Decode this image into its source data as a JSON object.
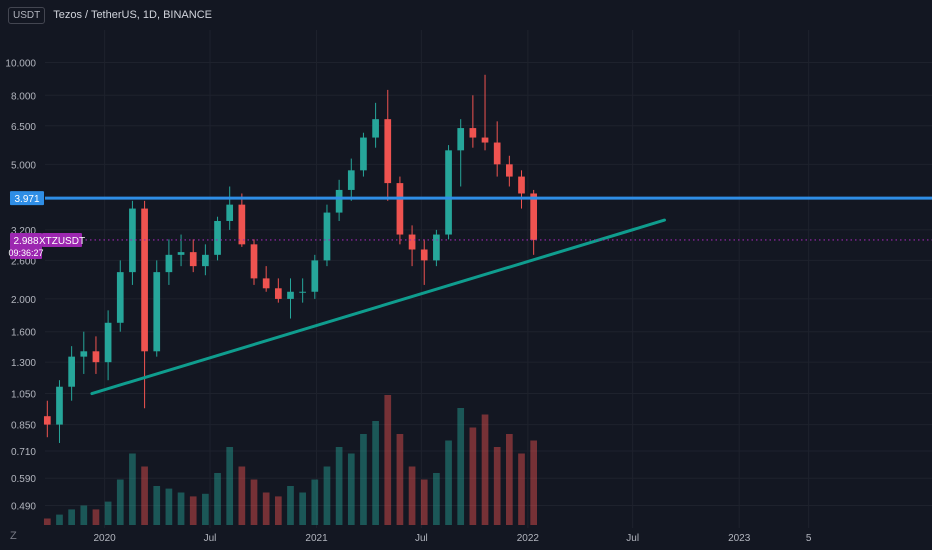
{
  "header": {
    "currency_button": "USDT",
    "title": "Tezos / TetherUS, 1D, BINANCE"
  },
  "bottom_bar": {
    "zoom_button": "Z"
  },
  "colors": {
    "background": "#131722",
    "grid": "#1e222d",
    "axis_text": "#b2b5be",
    "up_candle": "#26a69a",
    "down_candle": "#ef5350",
    "resistance_line": "#2f8ee6",
    "trendline": "#0f9d8e",
    "price_line": "#9c27b0"
  },
  "chart_data": {
    "type": "candlestick",
    "title": "Tezos / TetherUS, 1D, BINANCE",
    "symbol": "XTZUSDT",
    "y_scale": "log",
    "ylim": [
      0.45,
      11.5
    ],
    "grid": true,
    "y_ticks": [
      "10.000",
      "8.000",
      "6.500",
      "5.000",
      "3.200",
      "2.600",
      "2.000",
      "1.600",
      "1.300",
      "1.050",
      "0.850",
      "0.710",
      "0.590",
      "0.490"
    ],
    "x_ticks": [
      "2020",
      "Jul",
      "2021",
      "Jul",
      "2022",
      "Jul",
      "2023",
      "5"
    ],
    "x_tick_dates": [
      "2020-01-01",
      "2020-07-01",
      "2021-01-01",
      "2021-07-01",
      "2022-01-01",
      "2022-07-01",
      "2023-01-01",
      "2023-05-01"
    ],
    "xlim": [
      "2019-09-20",
      "2023-11-30"
    ],
    "series": [
      {
        "type": "candlestick",
        "timeframe": "1D",
        "x": [
          "2019-09-24",
          "2019-10-15",
          "2019-11-05",
          "2019-11-26",
          "2019-12-17",
          "2020-01-07",
          "2020-01-28",
          "2020-02-18",
          "2020-03-10",
          "2020-03-31",
          "2020-04-21",
          "2020-05-12",
          "2020-06-02",
          "2020-06-23",
          "2020-07-14",
          "2020-08-04",
          "2020-08-25",
          "2020-09-15",
          "2020-10-06",
          "2020-10-27",
          "2020-11-17",
          "2020-12-08",
          "2020-12-29",
          "2021-01-19",
          "2021-02-09",
          "2021-03-02",
          "2021-03-23",
          "2021-04-13",
          "2021-05-04",
          "2021-05-25",
          "2021-06-15",
          "2021-07-06",
          "2021-07-27",
          "2021-08-17",
          "2021-09-07",
          "2021-09-28",
          "2021-10-19",
          "2021-11-09",
          "2021-11-30",
          "2021-12-21",
          "2022-01-11"
        ],
        "open": [
          0.9,
          0.85,
          1.1,
          1.35,
          1.4,
          1.3,
          1.7,
          2.4,
          3.7,
          1.4,
          2.4,
          2.7,
          2.75,
          2.5,
          2.7,
          3.4,
          3.8,
          2.9,
          2.3,
          2.15,
          2.0,
          2.1,
          2.1,
          2.6,
          3.6,
          4.2,
          4.8,
          6.0,
          6.8,
          4.4,
          3.1,
          2.8,
          2.6,
          3.1,
          5.5,
          6.4,
          6.0,
          5.8,
          5.0,
          4.6,
          4.1
        ],
        "high": [
          1.0,
          1.15,
          1.45,
          1.6,
          1.55,
          1.85,
          2.6,
          3.9,
          3.9,
          2.6,
          3.0,
          3.1,
          3.0,
          2.9,
          3.5,
          4.3,
          4.1,
          3.0,
          2.5,
          2.3,
          2.3,
          2.3,
          2.7,
          3.8,
          4.5,
          5.2,
          6.2,
          7.6,
          8.3,
          4.6,
          3.3,
          3.0,
          3.2,
          5.7,
          6.8,
          8.0,
          9.2,
          6.7,
          5.3,
          4.8,
          4.2
        ],
        "low": [
          0.78,
          0.75,
          1.0,
          1.2,
          1.2,
          1.15,
          1.6,
          2.2,
          0.95,
          1.35,
          2.2,
          2.5,
          2.4,
          2.35,
          2.6,
          3.2,
          2.85,
          2.2,
          2.1,
          1.95,
          1.75,
          1.95,
          2.0,
          2.5,
          3.4,
          3.9,
          4.6,
          5.6,
          3.9,
          2.9,
          2.5,
          2.2,
          2.5,
          3.0,
          4.3,
          5.6,
          5.5,
          4.6,
          4.3,
          3.7,
          2.7
        ],
        "close": [
          0.85,
          1.1,
          1.35,
          1.4,
          1.3,
          1.7,
          2.4,
          3.7,
          1.4,
          2.4,
          2.7,
          2.75,
          2.5,
          2.7,
          3.4,
          3.8,
          2.9,
          2.3,
          2.15,
          2.0,
          2.1,
          2.1,
          2.6,
          3.6,
          4.2,
          4.8,
          6.0,
          6.8,
          4.4,
          3.1,
          2.8,
          2.6,
          3.1,
          5.5,
          6.4,
          6.0,
          5.8,
          5.0,
          4.6,
          4.1,
          2.988
        ],
        "volume": [
          0.05,
          0.08,
          0.12,
          0.15,
          0.12,
          0.18,
          0.35,
          0.55,
          0.45,
          0.3,
          0.28,
          0.25,
          0.22,
          0.24,
          0.4,
          0.6,
          0.45,
          0.35,
          0.25,
          0.22,
          0.3,
          0.25,
          0.35,
          0.45,
          0.6,
          0.55,
          0.7,
          0.8,
          1.0,
          0.7,
          0.45,
          0.35,
          0.4,
          0.65,
          0.9,
          0.75,
          0.85,
          0.6,
          0.7,
          0.55,
          0.65
        ]
      }
    ],
    "horizontal_lines": [
      {
        "value": 3.971,
        "label": "3.971"
      }
    ],
    "trendline": {
      "x": [
        "2019-12-10",
        "2022-08-25"
      ],
      "y": [
        1.05,
        3.42
      ]
    },
    "last_price": {
      "value": 2.988,
      "label": "2.988",
      "symbol_label": "XTZUSDT",
      "countdown": "09:36:27"
    }
  }
}
